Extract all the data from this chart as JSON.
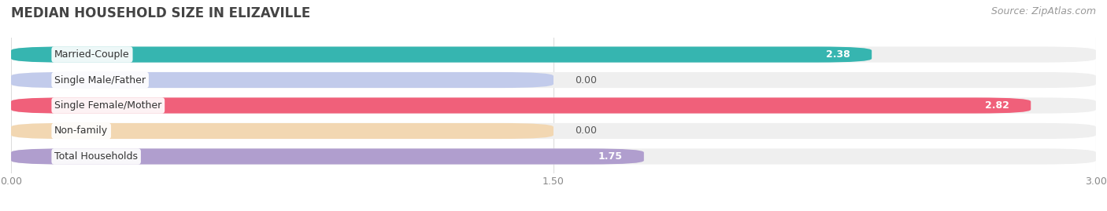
{
  "title": "MEDIAN HOUSEHOLD SIZE IN ELIZAVILLE",
  "source": "Source: ZipAtlas.com",
  "categories": [
    "Married-Couple",
    "Single Male/Father",
    "Single Female/Mother",
    "Non-family",
    "Total Households"
  ],
  "values": [
    2.38,
    0.0,
    2.82,
    0.0,
    1.75
  ],
  "bar_colors": [
    "#36b5b0",
    "#9daee8",
    "#f0607a",
    "#f5c480",
    "#b09ece"
  ],
  "bg_colors": [
    "#efefef",
    "#efefef",
    "#efefef",
    "#efefef",
    "#efefef"
  ],
  "label_bg_colors": [
    "#e8f8f7",
    "#dde3f7",
    "#fce8ef",
    "#fef0d8",
    "#ede8f5"
  ],
  "xlim": [
    0,
    3.0
  ],
  "xticks": [
    0.0,
    1.5,
    3.0
  ],
  "xtick_labels": [
    "0.00",
    "1.50",
    "3.00"
  ],
  "bar_height": 0.62,
  "zero_stub_value": 1.5,
  "title_fontsize": 12,
  "label_fontsize": 9,
  "value_fontsize": 9,
  "source_fontsize": 9,
  "background_color": "#ffffff"
}
